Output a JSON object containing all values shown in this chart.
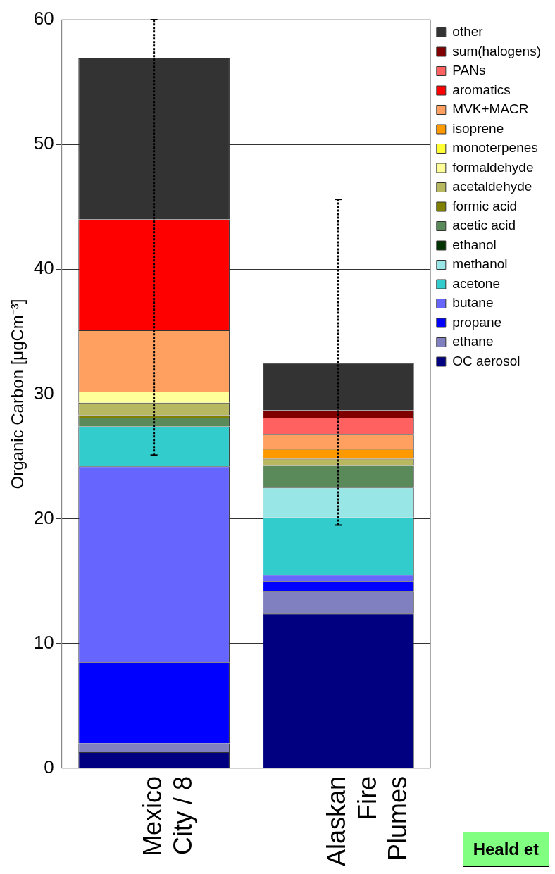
{
  "chart_data": {
    "type": "bar",
    "stacked": true,
    "ylabel": "Organic Carbon [μgCm⁻³]",
    "categories": [
      "Mexico City / 8",
      "Alaskan Fire Plumes"
    ],
    "ylim": [
      0,
      60
    ],
    "yticks": [
      0,
      10,
      20,
      30,
      40,
      50,
      60
    ],
    "grid": "y",
    "legend": "top right",
    "series": [
      {
        "name": "OC aerosol",
        "color": "#000080",
        "values": [
          1.3,
          12.4
        ]
      },
      {
        "name": "ethane",
        "color": "#8080c0",
        "values": [
          0.7,
          1.8
        ]
      },
      {
        "name": "propane",
        "color": "#0000ff",
        "values": [
          6.5,
          0.8
        ]
      },
      {
        "name": "butane",
        "color": "#6666ff",
        "values": [
          15.7,
          0.5
        ]
      },
      {
        "name": "acetone",
        "color": "#33cccc",
        "values": [
          3.2,
          4.6
        ]
      },
      {
        "name": "methanol",
        "color": "#99e6e6",
        "values": [
          0,
          2.4
        ]
      },
      {
        "name": "ethanol",
        "color": "#003300",
        "values": [
          0,
          0
        ]
      },
      {
        "name": "acetic acid",
        "color": "#5a8a5a",
        "values": [
          0.7,
          1.8
        ]
      },
      {
        "name": "formic acid",
        "color": "#808000",
        "values": [
          0.2,
          0
        ]
      },
      {
        "name": "acetaldehyde",
        "color": "#b8b860",
        "values": [
          1.0,
          0.5
        ]
      },
      {
        "name": "formaldehyde",
        "color": "#ffff99",
        "values": [
          0.9,
          0
        ]
      },
      {
        "name": "monoterpenes",
        "color": "#ffff33",
        "values": [
          0,
          0
        ]
      },
      {
        "name": "isoprene",
        "color": "#ff9900",
        "values": [
          0,
          0.8
        ]
      },
      {
        "name": "MVK+MACR",
        "color": "#ffa060",
        "values": [
          4.9,
          1.2
        ]
      },
      {
        "name": "aromatics",
        "color": "#ff0000",
        "values": [
          8.9,
          0
        ]
      },
      {
        "name": "PANs",
        "color": "#ff6060",
        "values": [
          0,
          1.3
        ]
      },
      {
        "name": "sum(halogens)",
        "color": "#800000",
        "values": [
          0,
          0.6
        ]
      },
      {
        "name": "other",
        "color": "#333333",
        "values": [
          12.9,
          3.8
        ],
        "errors": [
          [
            25.1,
            60
          ],
          [
            19.5,
            45.6
          ]
        ]
      }
    ],
    "annotations": [
      "Heald et"
    ]
  }
}
